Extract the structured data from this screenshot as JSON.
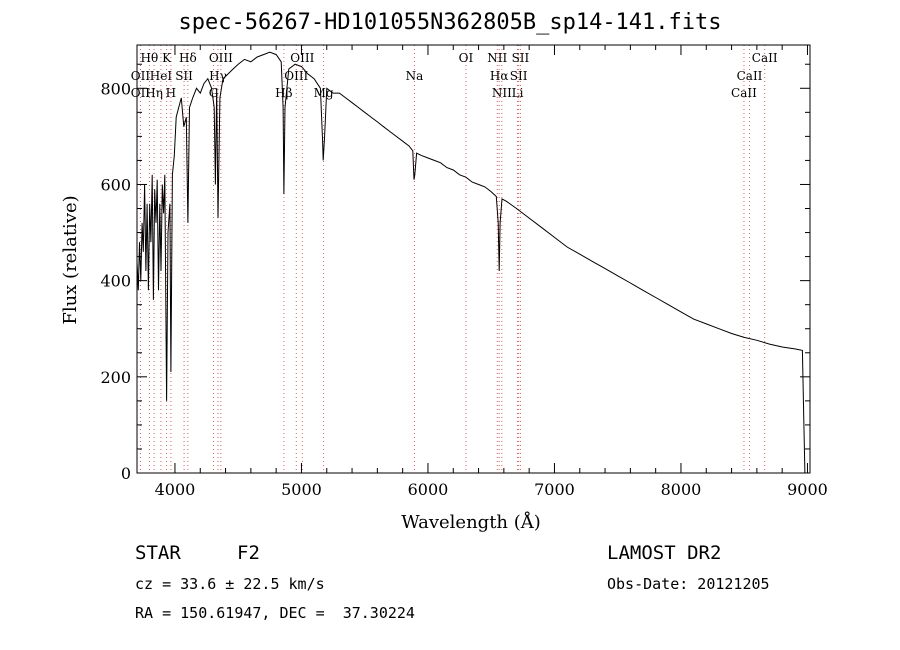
{
  "title": "spec-56267-HD101055N362805B_sp14-141.fits",
  "footer": {
    "class_label": "STAR",
    "subclass": "F2",
    "cz": "cz = 33.6 ± 22.5 km/s",
    "radec": "RA = 150.61947, DEC =  37.30224",
    "survey": "LAMOST DR2",
    "obs_date": "Obs-Date: 20121205"
  },
  "chart_data": {
    "type": "line",
    "title": "spec-56267-HD101055N362805B_sp14-141.fits",
    "xlabel": "Wavelength (Å)",
    "ylabel": "Flux (relative)",
    "xlim": [
      3700,
      9020
    ],
    "ylim": [
      0,
      890
    ],
    "xticks": [
      4000,
      5000,
      6000,
      7000,
      8000,
      9000
    ],
    "yticks": [
      0,
      200,
      400,
      600,
      800
    ],
    "line_color": "#000000",
    "marker_color": "#e06060",
    "series": [
      {
        "points": [
          [
            3700,
            440
          ],
          [
            3710,
            380
          ],
          [
            3720,
            480
          ],
          [
            3730,
            400
          ],
          [
            3740,
            520
          ],
          [
            3750,
            460
          ],
          [
            3760,
            600
          ],
          [
            3770,
            420
          ],
          [
            3780,
            560
          ],
          [
            3790,
            380
          ],
          [
            3800,
            560
          ],
          [
            3810,
            480
          ],
          [
            3820,
            620
          ],
          [
            3830,
            360
          ],
          [
            3840,
            590
          ],
          [
            3850,
            520
          ],
          [
            3860,
            610
          ],
          [
            3870,
            380
          ],
          [
            3880,
            560
          ],
          [
            3890,
            420
          ],
          [
            3900,
            600
          ],
          [
            3910,
            540
          ],
          [
            3920,
            620
          ],
          [
            3930,
            280
          ],
          [
            3934,
            150
          ],
          [
            3945,
            500
          ],
          [
            3960,
            560
          ],
          [
            3968,
            210
          ],
          [
            3980,
            620
          ],
          [
            3995,
            660
          ],
          [
            4010,
            740
          ],
          [
            4030,
            760
          ],
          [
            4050,
            780
          ],
          [
            4070,
            720
          ],
          [
            4090,
            740
          ],
          [
            4102,
            520
          ],
          [
            4115,
            760
          ],
          [
            4140,
            780
          ],
          [
            4170,
            800
          ],
          [
            4200,
            790
          ],
          [
            4230,
            810
          ],
          [
            4260,
            820
          ],
          [
            4290,
            800
          ],
          [
            4310,
            760
          ],
          [
            4320,
            600
          ],
          [
            4330,
            800
          ],
          [
            4340,
            530
          ],
          [
            4355,
            780
          ],
          [
            4380,
            820
          ],
          [
            4420,
            830
          ],
          [
            4460,
            840
          ],
          [
            4500,
            850
          ],
          [
            4550,
            860
          ],
          [
            4600,
            855
          ],
          [
            4650,
            865
          ],
          [
            4700,
            870
          ],
          [
            4750,
            875
          ],
          [
            4800,
            870
          ],
          [
            4840,
            855
          ],
          [
            4855,
            760
          ],
          [
            4861,
            580
          ],
          [
            4870,
            760
          ],
          [
            4900,
            840
          ],
          [
            4950,
            850
          ],
          [
            5000,
            845
          ],
          [
            5050,
            830
          ],
          [
            5100,
            820
          ],
          [
            5150,
            800
          ],
          [
            5167,
            690
          ],
          [
            5172,
            650
          ],
          [
            5183,
            700
          ],
          [
            5200,
            800
          ],
          [
            5250,
            790
          ],
          [
            5300,
            790
          ],
          [
            5350,
            780
          ],
          [
            5400,
            770
          ],
          [
            5450,
            760
          ],
          [
            5500,
            750
          ],
          [
            5550,
            740
          ],
          [
            5600,
            730
          ],
          [
            5650,
            720
          ],
          [
            5700,
            710
          ],
          [
            5750,
            700
          ],
          [
            5800,
            690
          ],
          [
            5850,
            680
          ],
          [
            5880,
            670
          ],
          [
            5890,
            610
          ],
          [
            5896,
            620
          ],
          [
            5910,
            665
          ],
          [
            5950,
            660
          ],
          [
            6000,
            655
          ],
          [
            6050,
            650
          ],
          [
            6100,
            645
          ],
          [
            6150,
            635
          ],
          [
            6200,
            630
          ],
          [
            6250,
            620
          ],
          [
            6300,
            615
          ],
          [
            6350,
            605
          ],
          [
            6400,
            600
          ],
          [
            6450,
            595
          ],
          [
            6500,
            585
          ],
          [
            6540,
            575
          ],
          [
            6555,
            520
          ],
          [
            6563,
            420
          ],
          [
            6570,
            520
          ],
          [
            6585,
            570
          ],
          [
            6620,
            565
          ],
          [
            6700,
            550
          ],
          [
            6800,
            530
          ],
          [
            6900,
            510
          ],
          [
            7000,
            490
          ],
          [
            7100,
            470
          ],
          [
            7200,
            455
          ],
          [
            7300,
            440
          ],
          [
            7400,
            425
          ],
          [
            7500,
            410
          ],
          [
            7600,
            395
          ],
          [
            7700,
            380
          ],
          [
            7800,
            365
          ],
          [
            7900,
            350
          ],
          [
            8000,
            335
          ],
          [
            8100,
            320
          ],
          [
            8200,
            310
          ],
          [
            8300,
            300
          ],
          [
            8400,
            290
          ],
          [
            8500,
            282
          ],
          [
            8600,
            276
          ],
          [
            8700,
            268
          ],
          [
            8800,
            262
          ],
          [
            8900,
            258
          ],
          [
            8960,
            255
          ],
          [
            8970,
            120
          ],
          [
            8980,
            0
          ]
        ]
      }
    ],
    "lines": [
      {
        "label": "Hθ",
        "x": 3798,
        "row": 0
      },
      {
        "label": "K",
        "x": 3934,
        "row": 0
      },
      {
        "label": "Hδ",
        "x": 4102,
        "row": 0
      },
      {
        "label": "OIII",
        "x": 4363,
        "row": 0
      },
      {
        "label": "OIII",
        "x": 5007,
        "row": 0
      },
      {
        "label": "OI",
        "x": 6300,
        "row": 0
      },
      {
        "label": "NII",
        "x": 6548,
        "row": 0
      },
      {
        "label": "SII",
        "x": 6731,
        "row": 0
      },
      {
        "label": "CaII",
        "x": 8662,
        "row": 0
      },
      {
        "label": "OII",
        "x": 3727,
        "row": 1
      },
      {
        "label": "HeI",
        "x": 3889,
        "row": 1
      },
      {
        "label": "SII",
        "x": 4072,
        "row": 1
      },
      {
        "label": "Hγ",
        "x": 4340,
        "row": 1
      },
      {
        "label": "OIII",
        "x": 4959,
        "row": 1
      },
      {
        "label": "Na",
        "x": 5893,
        "row": 1
      },
      {
        "label": "Hα",
        "x": 6563,
        "row": 1
      },
      {
        "label": "SII",
        "x": 6717,
        "row": 1
      },
      {
        "label": "CaII",
        "x": 8542,
        "row": 1
      },
      {
        "label": "OII",
        "x": 3727,
        "row": 2
      },
      {
        "label": "Hη",
        "x": 3835,
        "row": 2
      },
      {
        "label": "H",
        "x": 3968,
        "row": 2
      },
      {
        "label": "G",
        "x": 4305,
        "row": 2
      },
      {
        "label": "Hβ",
        "x": 4861,
        "row": 2
      },
      {
        "label": "Mg",
        "x": 5175,
        "row": 2
      },
      {
        "label": "NII",
        "x": 6584,
        "row": 2
      },
      {
        "label": "Li",
        "x": 6708,
        "row": 2
      },
      {
        "label": "CaII",
        "x": 8498,
        "row": 2
      }
    ]
  }
}
